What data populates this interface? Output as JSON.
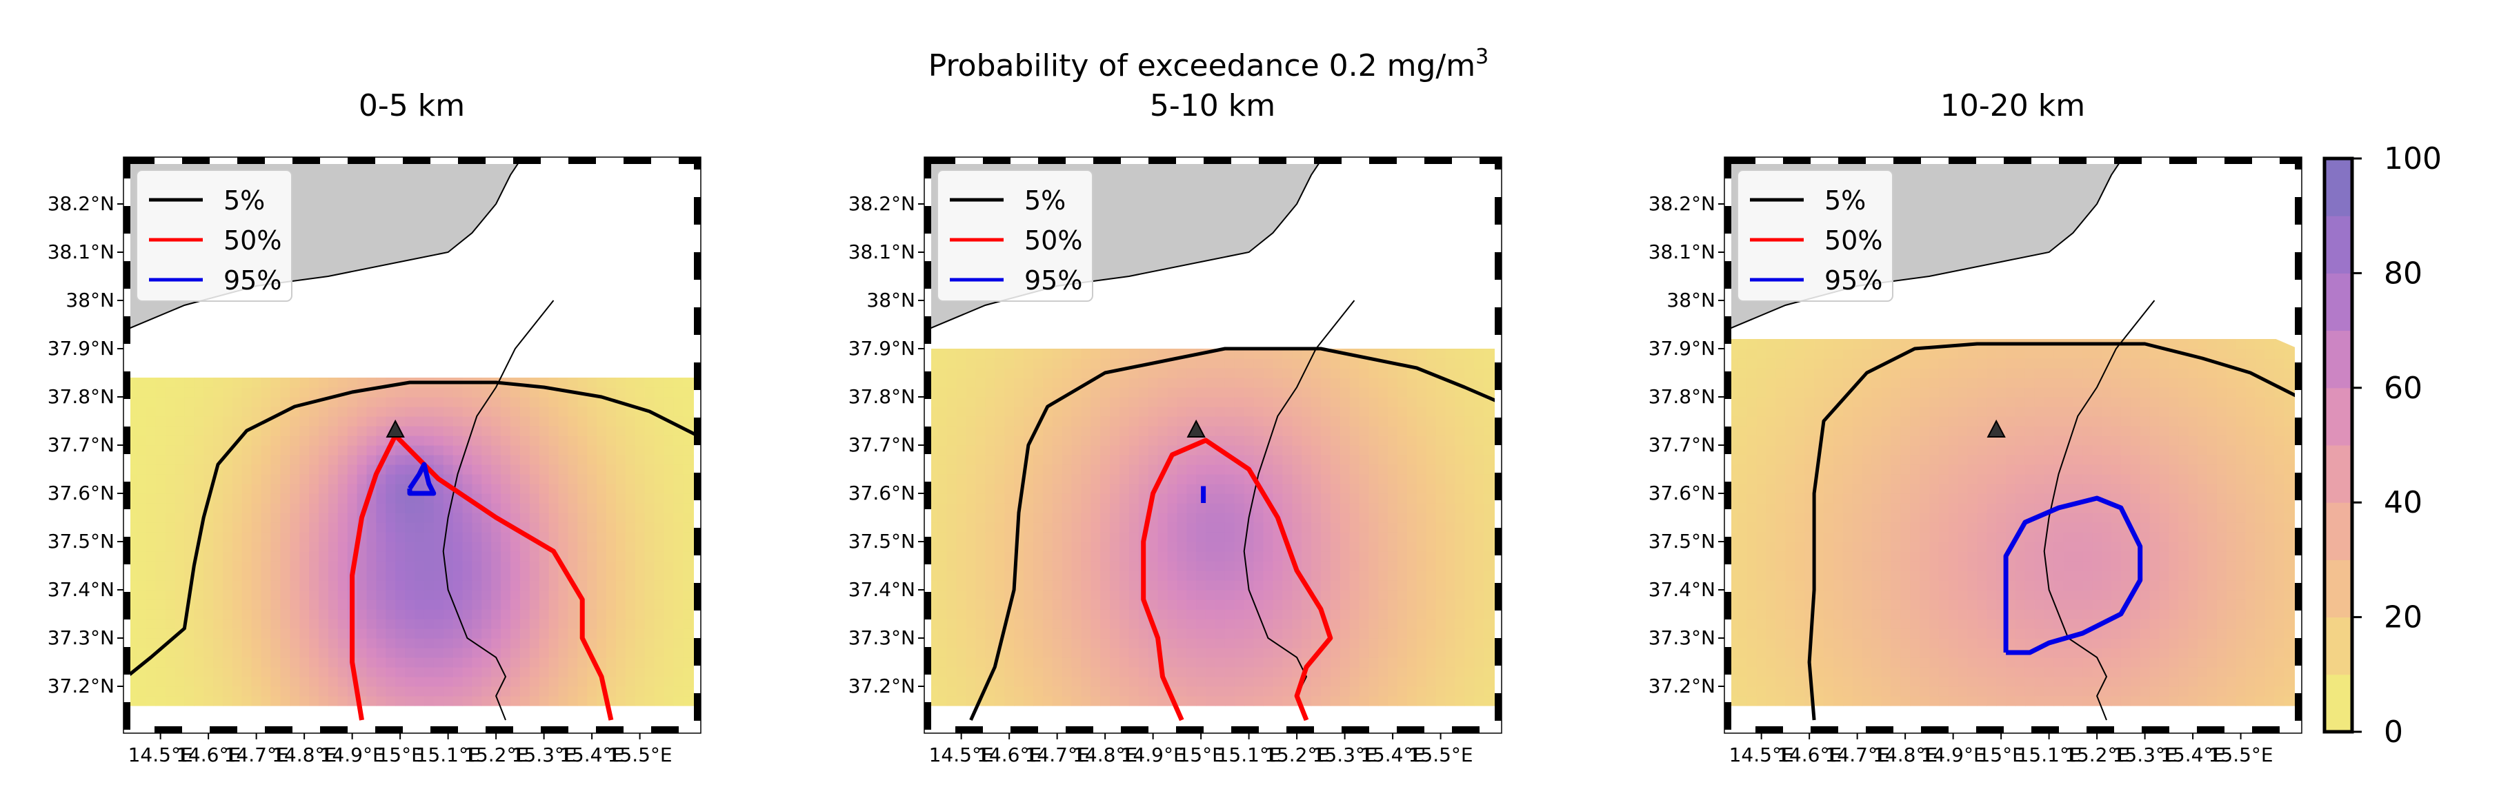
{
  "figure": {
    "suptitle_main": "Probability of exceedance 0.2 mg/m",
    "suptitle_sup": "3"
  },
  "colors": {
    "land": "#c8c8c8",
    "coast": "#000000",
    "contour_5": "#000000",
    "contour_50": "#ff0000",
    "contour_95": "#0000e6",
    "volcano_marker": "#333333"
  },
  "chart_data": {
    "type": "heatmap",
    "xlim": [
      14.43,
      15.62
    ],
    "ylim": [
      37.11,
      38.29
    ],
    "xticks": [
      14.5,
      14.6,
      14.7,
      14.8,
      14.9,
      15.0,
      15.1,
      15.2,
      15.3,
      15.4,
      15.5
    ],
    "xtick_labels": [
      "14.5°E",
      "14.6°E",
      "14.7°E",
      "14.8°E",
      "14.9°E",
      "15°E",
      "15.1°E",
      "15.2°E",
      "15.3°E",
      "15.4°E",
      "15.5°E"
    ],
    "yticks": [
      37.2,
      37.3,
      37.4,
      37.5,
      37.6,
      37.7,
      37.8,
      37.9,
      38.0,
      38.1,
      38.2
    ],
    "ytick_labels": [
      "37.2°N",
      "37.3°N",
      "37.4°N",
      "37.5°N",
      "37.6°N",
      "37.7°N",
      "37.8°N",
      "37.9°N",
      "38°N",
      "38.1°N",
      "38.2°N"
    ],
    "volcano": {
      "lon": 14.99,
      "lat": 37.73
    },
    "colorbar": {
      "min": 0,
      "max": 100,
      "ticks": [
        0,
        20,
        40,
        60,
        80,
        100
      ],
      "tick_labels": [
        "0",
        "20",
        "40",
        "60",
        "80",
        "100"
      ],
      "stops": [
        {
          "value": 0,
          "color": "#f0f27a"
        },
        {
          "value": 20,
          "color": "#f4c98a"
        },
        {
          "value": 40,
          "color": "#eea9a2"
        },
        {
          "value": 60,
          "color": "#d88ac0"
        },
        {
          "value": 80,
          "color": "#a774cc"
        },
        {
          "value": 100,
          "color": "#7a72c0"
        }
      ]
    },
    "legend": {
      "placement": "top-left",
      "entries": [
        {
          "label": "5%",
          "color": "#000000"
        },
        {
          "label": "50%",
          "color": "#ff0000"
        },
        {
          "label": "95%",
          "color": "#0000e6"
        }
      ]
    },
    "panels": [
      {
        "title": "0-5 km",
        "field": {
          "extent": {
            "north": 37.84,
            "south": 37.16,
            "west": 14.43,
            "east": 15.62
          },
          "background": 3,
          "blobs": [
            {
              "lon": 15.05,
              "lat": 37.43,
              "sx": 0.22,
              "sy": 0.28,
              "peak": 80
            },
            {
              "lon": 15.0,
              "lat": 37.62,
              "sx": 0.07,
              "sy": 0.07,
              "peak": 20
            }
          ]
        },
        "contours": [
          {
            "level": "5%",
            "points": [
              [
                14.43,
                37.22
              ],
              [
                14.48,
                37.26
              ],
              [
                14.55,
                37.32
              ],
              [
                14.57,
                37.45
              ],
              [
                14.59,
                37.55
              ],
              [
                14.62,
                37.66
              ],
              [
                14.68,
                37.73
              ],
              [
                14.78,
                37.78
              ],
              [
                14.9,
                37.81
              ],
              [
                15.02,
                37.83
              ],
              [
                15.2,
                37.83
              ],
              [
                15.3,
                37.82
              ],
              [
                15.42,
                37.8
              ],
              [
                15.52,
                37.77
              ],
              [
                15.6,
                37.73
              ],
              [
                15.62,
                37.72
              ]
            ]
          },
          {
            "level": "50%",
            "points": [
              [
                14.92,
                37.13
              ],
              [
                14.9,
                37.25
              ],
              [
                14.9,
                37.43
              ],
              [
                14.92,
                37.55
              ],
              [
                14.95,
                37.64
              ],
              [
                14.99,
                37.72
              ],
              [
                15.08,
                37.63
              ],
              [
                15.2,
                37.55
              ],
              [
                15.32,
                37.48
              ],
              [
                15.38,
                37.38
              ],
              [
                15.38,
                37.3
              ],
              [
                15.42,
                37.22
              ],
              [
                15.44,
                37.13
              ]
            ]
          },
          {
            "level": "95%",
            "points": [
              [
                15.02,
                37.61
              ],
              [
                15.04,
                37.64
              ],
              [
                15.05,
                37.66
              ],
              [
                15.06,
                37.62
              ],
              [
                15.07,
                37.6
              ],
              [
                15.02,
                37.6
              ],
              [
                15.02,
                37.61
              ]
            ]
          }
        ]
      },
      {
        "title": "5-10 km",
        "field": {
          "extent": {
            "north": 37.9,
            "south": 37.16,
            "west": 14.43,
            "east": 15.62
          },
          "background": 5,
          "blobs": [
            {
              "lon": 15.03,
              "lat": 37.45,
              "sx": 0.28,
              "sy": 0.33,
              "peak": 55
            },
            {
              "lon": 15.02,
              "lat": 37.55,
              "sx": 0.1,
              "sy": 0.12,
              "peak": 12
            }
          ]
        },
        "contours": [
          {
            "level": "5%",
            "points": [
              [
                14.52,
                37.13
              ],
              [
                14.57,
                37.24
              ],
              [
                14.61,
                37.4
              ],
              [
                14.62,
                37.56
              ],
              [
                14.64,
                37.7
              ],
              [
                14.68,
                37.78
              ],
              [
                14.8,
                37.85
              ],
              [
                14.95,
                37.88
              ],
              [
                15.05,
                37.9
              ],
              [
                15.25,
                37.9
              ],
              [
                15.35,
                37.88
              ],
              [
                15.45,
                37.86
              ],
              [
                15.55,
                37.82
              ],
              [
                15.62,
                37.79
              ]
            ]
          },
          {
            "level": "50%",
            "points": [
              [
                14.96,
                37.13
              ],
              [
                14.92,
                37.22
              ],
              [
                14.91,
                37.3
              ],
              [
                14.88,
                37.38
              ],
              [
                14.88,
                37.5
              ],
              [
                14.9,
                37.6
              ],
              [
                14.94,
                37.68
              ],
              [
                15.01,
                37.71
              ],
              [
                15.1,
                37.65
              ],
              [
                15.16,
                37.55
              ],
              [
                15.2,
                37.44
              ],
              [
                15.25,
                37.36
              ],
              [
                15.27,
                37.3
              ],
              [
                15.22,
                37.24
              ],
              [
                15.2,
                37.18
              ],
              [
                15.22,
                37.13
              ]
            ]
          },
          {
            "level": "95%",
            "points": [
              [
                15.005,
                37.58
              ],
              [
                15.005,
                37.615
              ]
            ]
          }
        ]
      },
      {
        "title": "10-20 km",
        "field": {
          "extent": {
            "north": 37.92,
            "south": 37.16,
            "west": 14.43,
            "east": 15.62
          },
          "background": 6,
          "blobs": [
            {
              "lon": 15.1,
              "lat": 37.45,
              "sx": 0.38,
              "sy": 0.35,
              "peak": 38
            },
            {
              "lon": 15.18,
              "lat": 37.45,
              "sx": 0.15,
              "sy": 0.15,
              "peak": 8
            }
          ]
        },
        "contours": [
          {
            "level": "5%",
            "points": [
              [
                14.61,
                37.13
              ],
              [
                14.6,
                37.25
              ],
              [
                14.61,
                37.4
              ],
              [
                14.61,
                37.6
              ],
              [
                14.63,
                37.75
              ],
              [
                14.72,
                37.85
              ],
              [
                14.82,
                37.9
              ],
              [
                14.95,
                37.91
              ],
              [
                15.1,
                37.91
              ],
              [
                15.3,
                37.91
              ],
              [
                15.42,
                37.88
              ],
              [
                15.52,
                37.85
              ],
              [
                15.58,
                37.82
              ],
              [
                15.62,
                37.8
              ]
            ]
          },
          {
            "level": "95%",
            "points": [
              [
                15.01,
                37.27
              ],
              [
                15.01,
                37.47
              ],
              [
                15.05,
                37.54
              ],
              [
                15.12,
                37.57
              ],
              [
                15.2,
                37.59
              ],
              [
                15.25,
                37.57
              ],
              [
                15.29,
                37.49
              ],
              [
                15.29,
                37.42
              ],
              [
                15.25,
                37.35
              ],
              [
                15.17,
                37.31
              ],
              [
                15.1,
                37.29
              ],
              [
                15.06,
                37.27
              ],
              [
                15.01,
                37.27
              ]
            ]
          }
        ]
      }
    ]
  }
}
